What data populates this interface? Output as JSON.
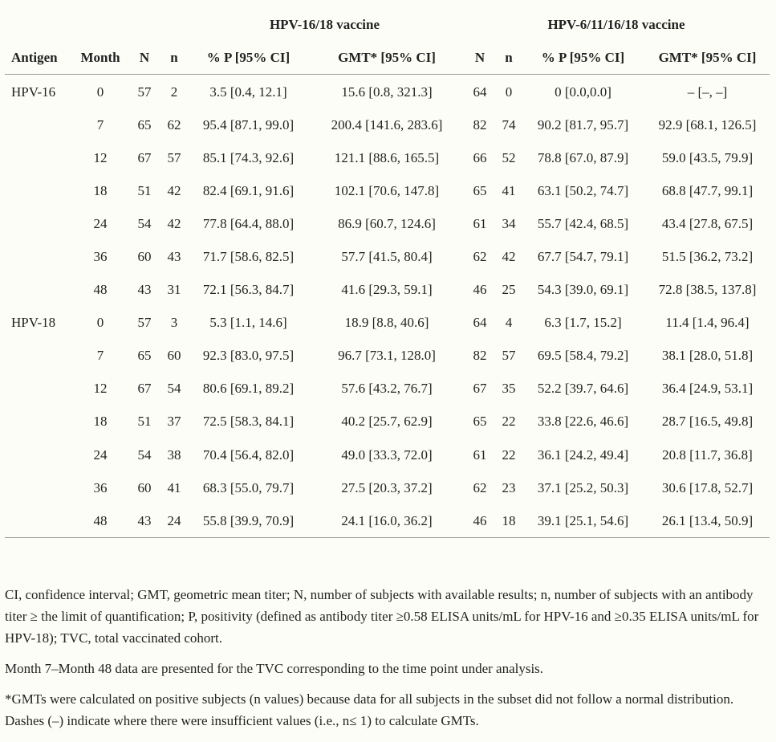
{
  "groups": {
    "g1": "HPV-16/18 vaccine",
    "g2": "HPV-6/11/16/18 vaccine"
  },
  "headers": [
    "Antigen",
    "Month",
    "N",
    "n",
    "% P [95% CI]",
    "GMT* [95% CI]",
    "N",
    "n",
    "% P [95% CI]",
    "GMT* [95% CI]"
  ],
  "rows": [
    [
      "HPV-16",
      "0",
      "57",
      "2",
      "3.5 [0.4, 12.1]",
      "15.6 [0.8, 321.3]",
      "64",
      "0",
      "0 [0.0,0.0]",
      "– [–, –]"
    ],
    [
      "",
      "7",
      "65",
      "62",
      "95.4 [87.1, 99.0]",
      "200.4 [141.6, 283.6]",
      "82",
      "74",
      "90.2 [81.7, 95.7]",
      "92.9 [68.1, 126.5]"
    ],
    [
      "",
      "12",
      "67",
      "57",
      "85.1 [74.3, 92.6]",
      "121.1 [88.6, 165.5]",
      "66",
      "52",
      "78.8 [67.0, 87.9]",
      "59.0 [43.5, 79.9]"
    ],
    [
      "",
      "18",
      "51",
      "42",
      "82.4 [69.1, 91.6]",
      "102.1 [70.6, 147.8]",
      "65",
      "41",
      "63.1 [50.2, 74.7]",
      "68.8 [47.7, 99.1]"
    ],
    [
      "",
      "24",
      "54",
      "42",
      "77.8 [64.4, 88.0]",
      "86.9 [60.7, 124.6]",
      "61",
      "34",
      "55.7 [42.4, 68.5]",
      "43.4 [27.8, 67.5]"
    ],
    [
      "",
      "36",
      "60",
      "43",
      "71.7 [58.6, 82.5]",
      "57.7 [41.5, 80.4]",
      "62",
      "42",
      "67.7 [54.7, 79.1]",
      "51.5 [36.2, 73.2]"
    ],
    [
      "",
      "48",
      "43",
      "31",
      "72.1 [56.3, 84.7]",
      "41.6 [29.3, 59.1]",
      "46",
      "25",
      "54.3 [39.0, 69.1]",
      "72.8 [38.5, 137.8]"
    ],
    [
      "HPV-18",
      "0",
      "57",
      "3",
      "5.3 [1.1, 14.6]",
      "18.9 [8.8, 40.6]",
      "64",
      "4",
      "6.3 [1.7, 15.2]",
      "11.4 [1.4, 96.4]"
    ],
    [
      "",
      "7",
      "65",
      "60",
      "92.3 [83.0, 97.5]",
      "96.7 [73.1, 128.0]",
      "82",
      "57",
      "69.5 [58.4, 79.2]",
      "38.1 [28.0, 51.8]"
    ],
    [
      "",
      "12",
      "67",
      "54",
      "80.6 [69.1, 89.2]",
      "57.6 [43.2, 76.7]",
      "67",
      "35",
      "52.2 [39.7, 64.6]",
      "36.4 [24.9, 53.1]"
    ],
    [
      "",
      "18",
      "51",
      "37",
      "72.5 [58.3, 84.1]",
      "40.2 [25.7, 62.9]",
      "65",
      "22",
      "33.8 [22.6, 46.6]",
      "28.7 [16.5, 49.8]"
    ],
    [
      "",
      "24",
      "54",
      "38",
      "70.4 [56.4, 82.0]",
      "49.0 [33.3, 72.0]",
      "61",
      "22",
      "36.1 [24.2, 49.4]",
      "20.8 [11.7, 36.8]"
    ],
    [
      "",
      "36",
      "60",
      "41",
      "68.3 [55.0, 79.7]",
      "27.5 [20.3, 37.2]",
      "62",
      "23",
      "37.1 [25.2, 50.3]",
      "30.6 [17.8, 52.7]"
    ],
    [
      "",
      "48",
      "43",
      "24",
      "55.8 [39.9, 70.9]",
      "24.1 [16.0, 36.2]",
      "46",
      "18",
      "39.1 [25.1, 54.6]",
      "26.1 [13.4, 50.9]"
    ]
  ],
  "footnotes": {
    "abbreviations": "CI, confidence interval; GMT, geometric mean titer; N, number of subjects with available results; n, number of subjects with an antibody titer ≥ the limit of quantification; P, positivity (defined as antibody titer ≥0.58 ELISA units/mL for HPV-16 and ≥0.35 ELISA units/mL for HPV-18); TVC, total vaccinated cohort.",
    "tvc_note": "Month 7–Month 48 data are presented for the TVC corresponding to the time point under analysis.",
    "gmt_note": "*GMTs were calculated on positive subjects (n values) because data for all subjects in the subset did not follow a normal distribution. Dashes (–) indicate where there were insufficient values (i.e., n≤ 1) to calculate GMTs."
  }
}
